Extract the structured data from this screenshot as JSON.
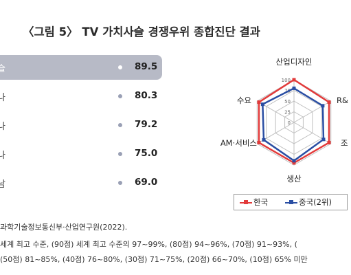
{
  "title": "〈그림 5〉 TV 가치사슬 경쟁우위 종합진단 결과",
  "bar_rows": [
    {
      "label": "슬",
      "value": "89.5",
      "highlight": true
    },
    {
      "label": "나",
      "value": "80.3",
      "highlight": false
    },
    {
      "label": "나",
      "value": "79.2",
      "highlight": false
    },
    {
      "label": "나",
      "value": "75.0",
      "highlight": false
    },
    {
      "label": "남",
      "value": "69.0",
      "highlight": false
    }
  ],
  "colors": {
    "korea": "#e23a3a",
    "china": "#2a4ea3",
    "grid": "#bfbfbf",
    "bar_highlight": "#b7bac6"
  },
  "chart_data": {
    "type": "radar",
    "categories": [
      "산업디자인",
      "R&",
      "조",
      "생산",
      "AM·서비스",
      "수요"
    ],
    "ticks": [
      "100",
      "75",
      "50",
      "25",
      "0"
    ],
    "rlim": [
      0,
      100
    ],
    "series": [
      {
        "name": "한국",
        "values": [
          100,
          95,
          95,
          95,
          95,
          95
        ]
      },
      {
        "name": "중국(2위)",
        "values": [
          80,
          78,
          80,
          90,
          82,
          85
        ]
      }
    ],
    "legend": "bottom"
  },
  "notes": {
    "source": "과학기술정보통신부·산업연구원(2022).",
    "line1": "세계 최고 수준, (90점) 세계 최고 수준의 97~99%, (80점) 94~96%, (70점) 91~93%, (",
    "line2": "(50점) 81~85%, (40점) 76~80%, (30점) 71~75%, (20점) 66~70%, (10점) 65% 미만"
  }
}
